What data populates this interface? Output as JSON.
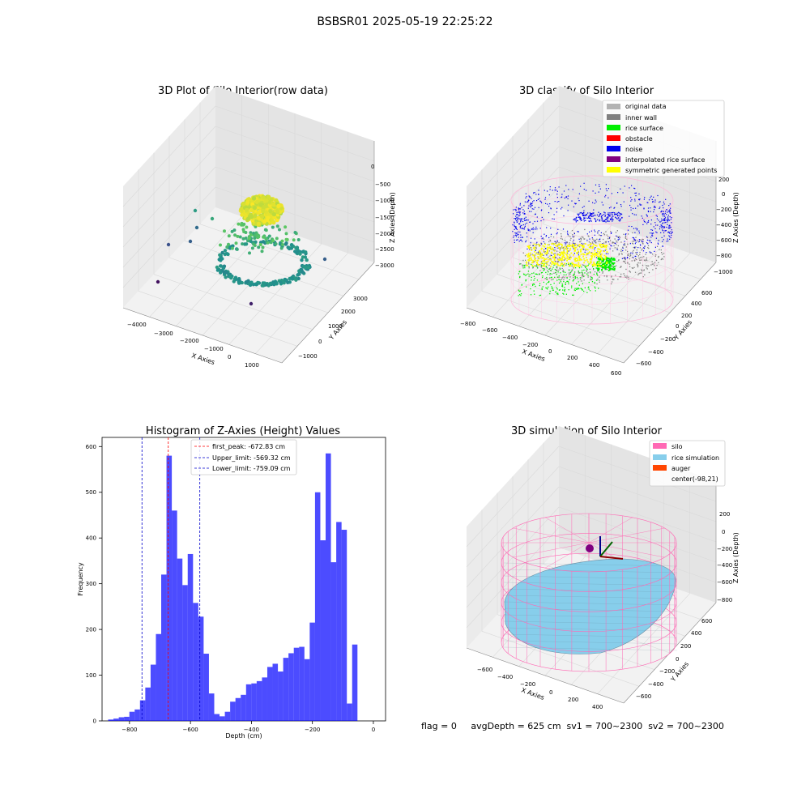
{
  "figure": {
    "suptitle": "BSBSR01 2025-05-19 22:25:22",
    "status_line": "flag = 0     avgDepth = 625 cm  sv1 = 700~2300  sv2 = 700~2300"
  },
  "colors": {
    "bar": "#0000ff",
    "first_peak": "#ff0000",
    "limits": "#0000cc",
    "pane": "#f2f2f2",
    "grid": "#d9d9d9",
    "silo": "#ff69b4",
    "rice": "#87ceeb",
    "auger": "#ff4500",
    "original": "#b3b3b3",
    "inner_wall": "#808080",
    "rice_surface": "#00ee00",
    "obstacle": "#ff0000",
    "noise": "#0000ee",
    "interp": "#800080",
    "sym": "#ffff00"
  },
  "chart_data": [
    {
      "type": "scatter",
      "projection": "3d",
      "title": "3D Plot of Silo Interior(row data)",
      "xlabel": "X Axies",
      "ylabel": "Y Axies",
      "zlabel": "Z Axies (Depth)",
      "xticks": [
        "−4000",
        "−3000",
        "−2000",
        "−1000",
        "0",
        "1000"
      ],
      "yticks": [
        "−1000",
        "0",
        "1000",
        "2000",
        "3000"
      ],
      "zticks": [
        "0",
        "−500",
        "−1000",
        "−1500",
        "−2000",
        "−2500",
        "−3000"
      ],
      "colormap": "viridis"
    },
    {
      "type": "scatter",
      "projection": "3d",
      "title": "3D classify of Silo Interior",
      "xlabel": "X Axies",
      "ylabel": "Y Axies",
      "zlabel": "Z Axies (Depth)",
      "xticks": [
        "−800",
        "−600",
        "−400",
        "−200",
        "0",
        "200",
        "400",
        "600"
      ],
      "yticks": [
        "−600",
        "−400",
        "−200",
        "0",
        "200",
        "400",
        "600"
      ],
      "zticks": [
        "200",
        "0",
        "−200",
        "−400",
        "−600",
        "−800",
        "−1000"
      ],
      "legend_position": "upper-right",
      "legend": [
        {
          "label": "original data",
          "color": "#b3b3b3"
        },
        {
          "label": "inner wall",
          "color": "#808080"
        },
        {
          "label": "rice surface",
          "color": "#00ee00"
        },
        {
          "label": "obstacle",
          "color": "#ff0000"
        },
        {
          "label": "noise",
          "color": "#0000ee"
        },
        {
          "label": "interpolated rice surface",
          "color": "#800080"
        },
        {
          "label": "symmetric generated points",
          "color": "#ffff00"
        }
      ]
    },
    {
      "type": "bar",
      "title": "Histogram of Z-Axies (Height) Values",
      "xlabel": "Depth (cm)",
      "ylabel": "Frequency",
      "xlim": [
        -890,
        40
      ],
      "ylim": [
        0,
        620
      ],
      "xticks": [
        -800,
        -600,
        -400,
        -200,
        0
      ],
      "xtick_labels": [
        "−800",
        "−600",
        "−400",
        "−200",
        "0"
      ],
      "yticks": [
        0,
        100,
        200,
        300,
        400,
        500,
        600
      ],
      "bin_start": -870,
      "bin_width": 17.4,
      "values": [
        3,
        5,
        8,
        9,
        20,
        25,
        45,
        73,
        123,
        190,
        320,
        580,
        460,
        355,
        297,
        365,
        258,
        228,
        147,
        60,
        15,
        10,
        20,
        42,
        50,
        57,
        80,
        82,
        87,
        95,
        118,
        125,
        108,
        138,
        148,
        160,
        162,
        135,
        215,
        500,
        395,
        585,
        347,
        435,
        418,
        38,
        167
      ],
      "vlines": [
        {
          "label": "first_peak: -672.83 cm",
          "x": -672.83,
          "color": "#ff0000"
        },
        {
          "label": "Upper_limit: -569.32 cm",
          "x": -569.32,
          "color": "#0000cc"
        },
        {
          "label": "Lower_limit: -759.09 cm",
          "x": -759.09,
          "color": "#0000cc"
        }
      ],
      "legend_position": "upper-center"
    },
    {
      "type": "surface",
      "projection": "3d",
      "title": "3D simulation of Silo Interior",
      "xlabel": "X Axies",
      "ylabel": "Y Axies",
      "zlabel": "Z Axies (Depth)",
      "xticks": [
        "−600",
        "−400",
        "−200",
        "0",
        "200",
        "400"
      ],
      "yticks": [
        "−600",
        "−400",
        "−200",
        "0",
        "200",
        "400",
        "600"
      ],
      "zticks": [
        "200",
        "0",
        "−200",
        "−400",
        "−600",
        "−800"
      ],
      "legend_position": "upper-right",
      "legend": [
        {
          "label": "silo",
          "color": "#ff69b4"
        },
        {
          "label": "rice simulation",
          "color": "#87ceeb"
        },
        {
          "label": "auger",
          "color": "#ff4500"
        },
        {
          "label": "center(-98,21)",
          "color": ""
        }
      ]
    }
  ]
}
